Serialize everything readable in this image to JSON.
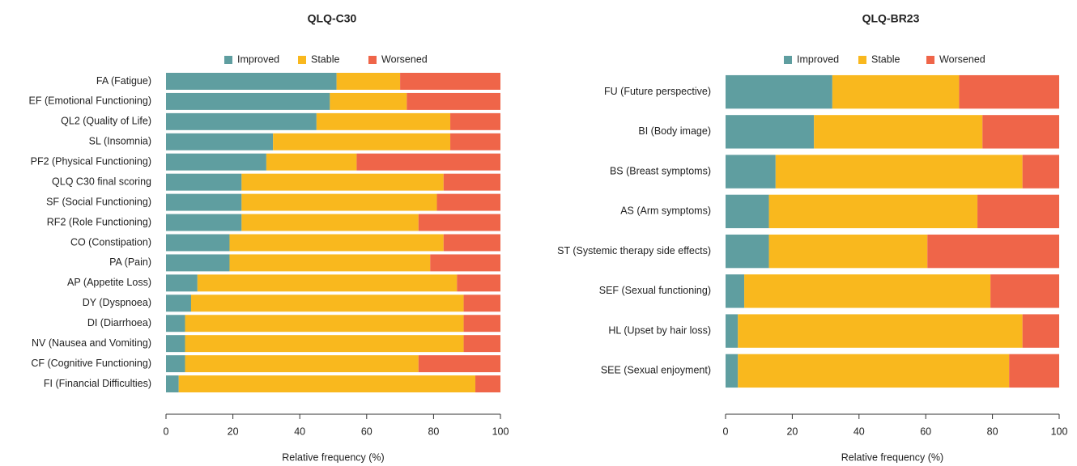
{
  "chart_data": [
    {
      "type": "bar",
      "orientation": "horizontal",
      "title": "QLQ-C30",
      "xlabel": "Relative frequency (%)",
      "categories": [
        "FA (Fatigue)",
        "EF (Emotional Functioning)",
        "QL2 (Quality of Life)",
        "SL (Insomnia)",
        "PF2 (Physical Functioning)",
        "QLQ C30 final scoring",
        "SF (Social Functioning)",
        "RF2 (Role Functioning)",
        "CO (Constipation)",
        "PA (Pain)",
        "AP (Appetite Loss)",
        "DY (Dyspnoea)",
        "DI (Diarrhoea)",
        "NV (Nausea and Vomiting)",
        "CF (Cognitive Functioning)",
        "FI (Financial Difficulties)"
      ],
      "series": [
        {
          "name": "Improved",
          "color": "#5f9ea0",
          "values": [
            51,
            49,
            45,
            32,
            30,
            22.6,
            22.6,
            22.6,
            19,
            19,
            9.4,
            7.5,
            5.7,
            5.7,
            5.7,
            3.8
          ]
        },
        {
          "name": "Stable",
          "color": "#f9b81e",
          "values": [
            19,
            23,
            40,
            53,
            27,
            60.4,
            58.4,
            52.9,
            64,
            60,
            77.6,
            81.5,
            83.3,
            83.3,
            69.8,
            88.7
          ]
        },
        {
          "name": "Worsened",
          "color": "#ef6549",
          "values": [
            30,
            28,
            15,
            15,
            43,
            17,
            19,
            24.5,
            17,
            21,
            13,
            11,
            11,
            11,
            24.5,
            7.5
          ]
        }
      ],
      "stacked": true,
      "xlim": [
        0,
        100
      ],
      "xticks": [
        0,
        20,
        40,
        60,
        80,
        100
      ],
      "legend": "top"
    },
    {
      "type": "bar",
      "orientation": "horizontal",
      "title": "QLQ-BR23",
      "xlabel": "Relative frequency (%)",
      "categories": [
        "FU (Future perspective)",
        "BI (Body image)",
        "BS (Breast symptoms)",
        "AS (Arm symptoms)",
        "ST (Systemic therapy side effects)",
        "SEF (Sexual functioning)",
        "HL (Upset by hair loss)",
        "SEE (Sexual enjoyment)"
      ],
      "series": [
        {
          "name": "Improved",
          "color": "#5f9ea0",
          "values": [
            32,
            26.5,
            15,
            13,
            13,
            5.6,
            3.7,
            3.7
          ]
        },
        {
          "name": "Stable",
          "color": "#f9b81e",
          "values": [
            38,
            50.5,
            74,
            62.5,
            47.5,
            73.8,
            85.3,
            81.3
          ]
        },
        {
          "name": "Worsened",
          "color": "#ef6549",
          "values": [
            30,
            23,
            11,
            24.5,
            39.5,
            20.6,
            11,
            15
          ]
        }
      ],
      "stacked": true,
      "xlim": [
        0,
        100
      ],
      "xticks": [
        0,
        20,
        40,
        60,
        80,
        100
      ],
      "legend": "top"
    }
  ]
}
